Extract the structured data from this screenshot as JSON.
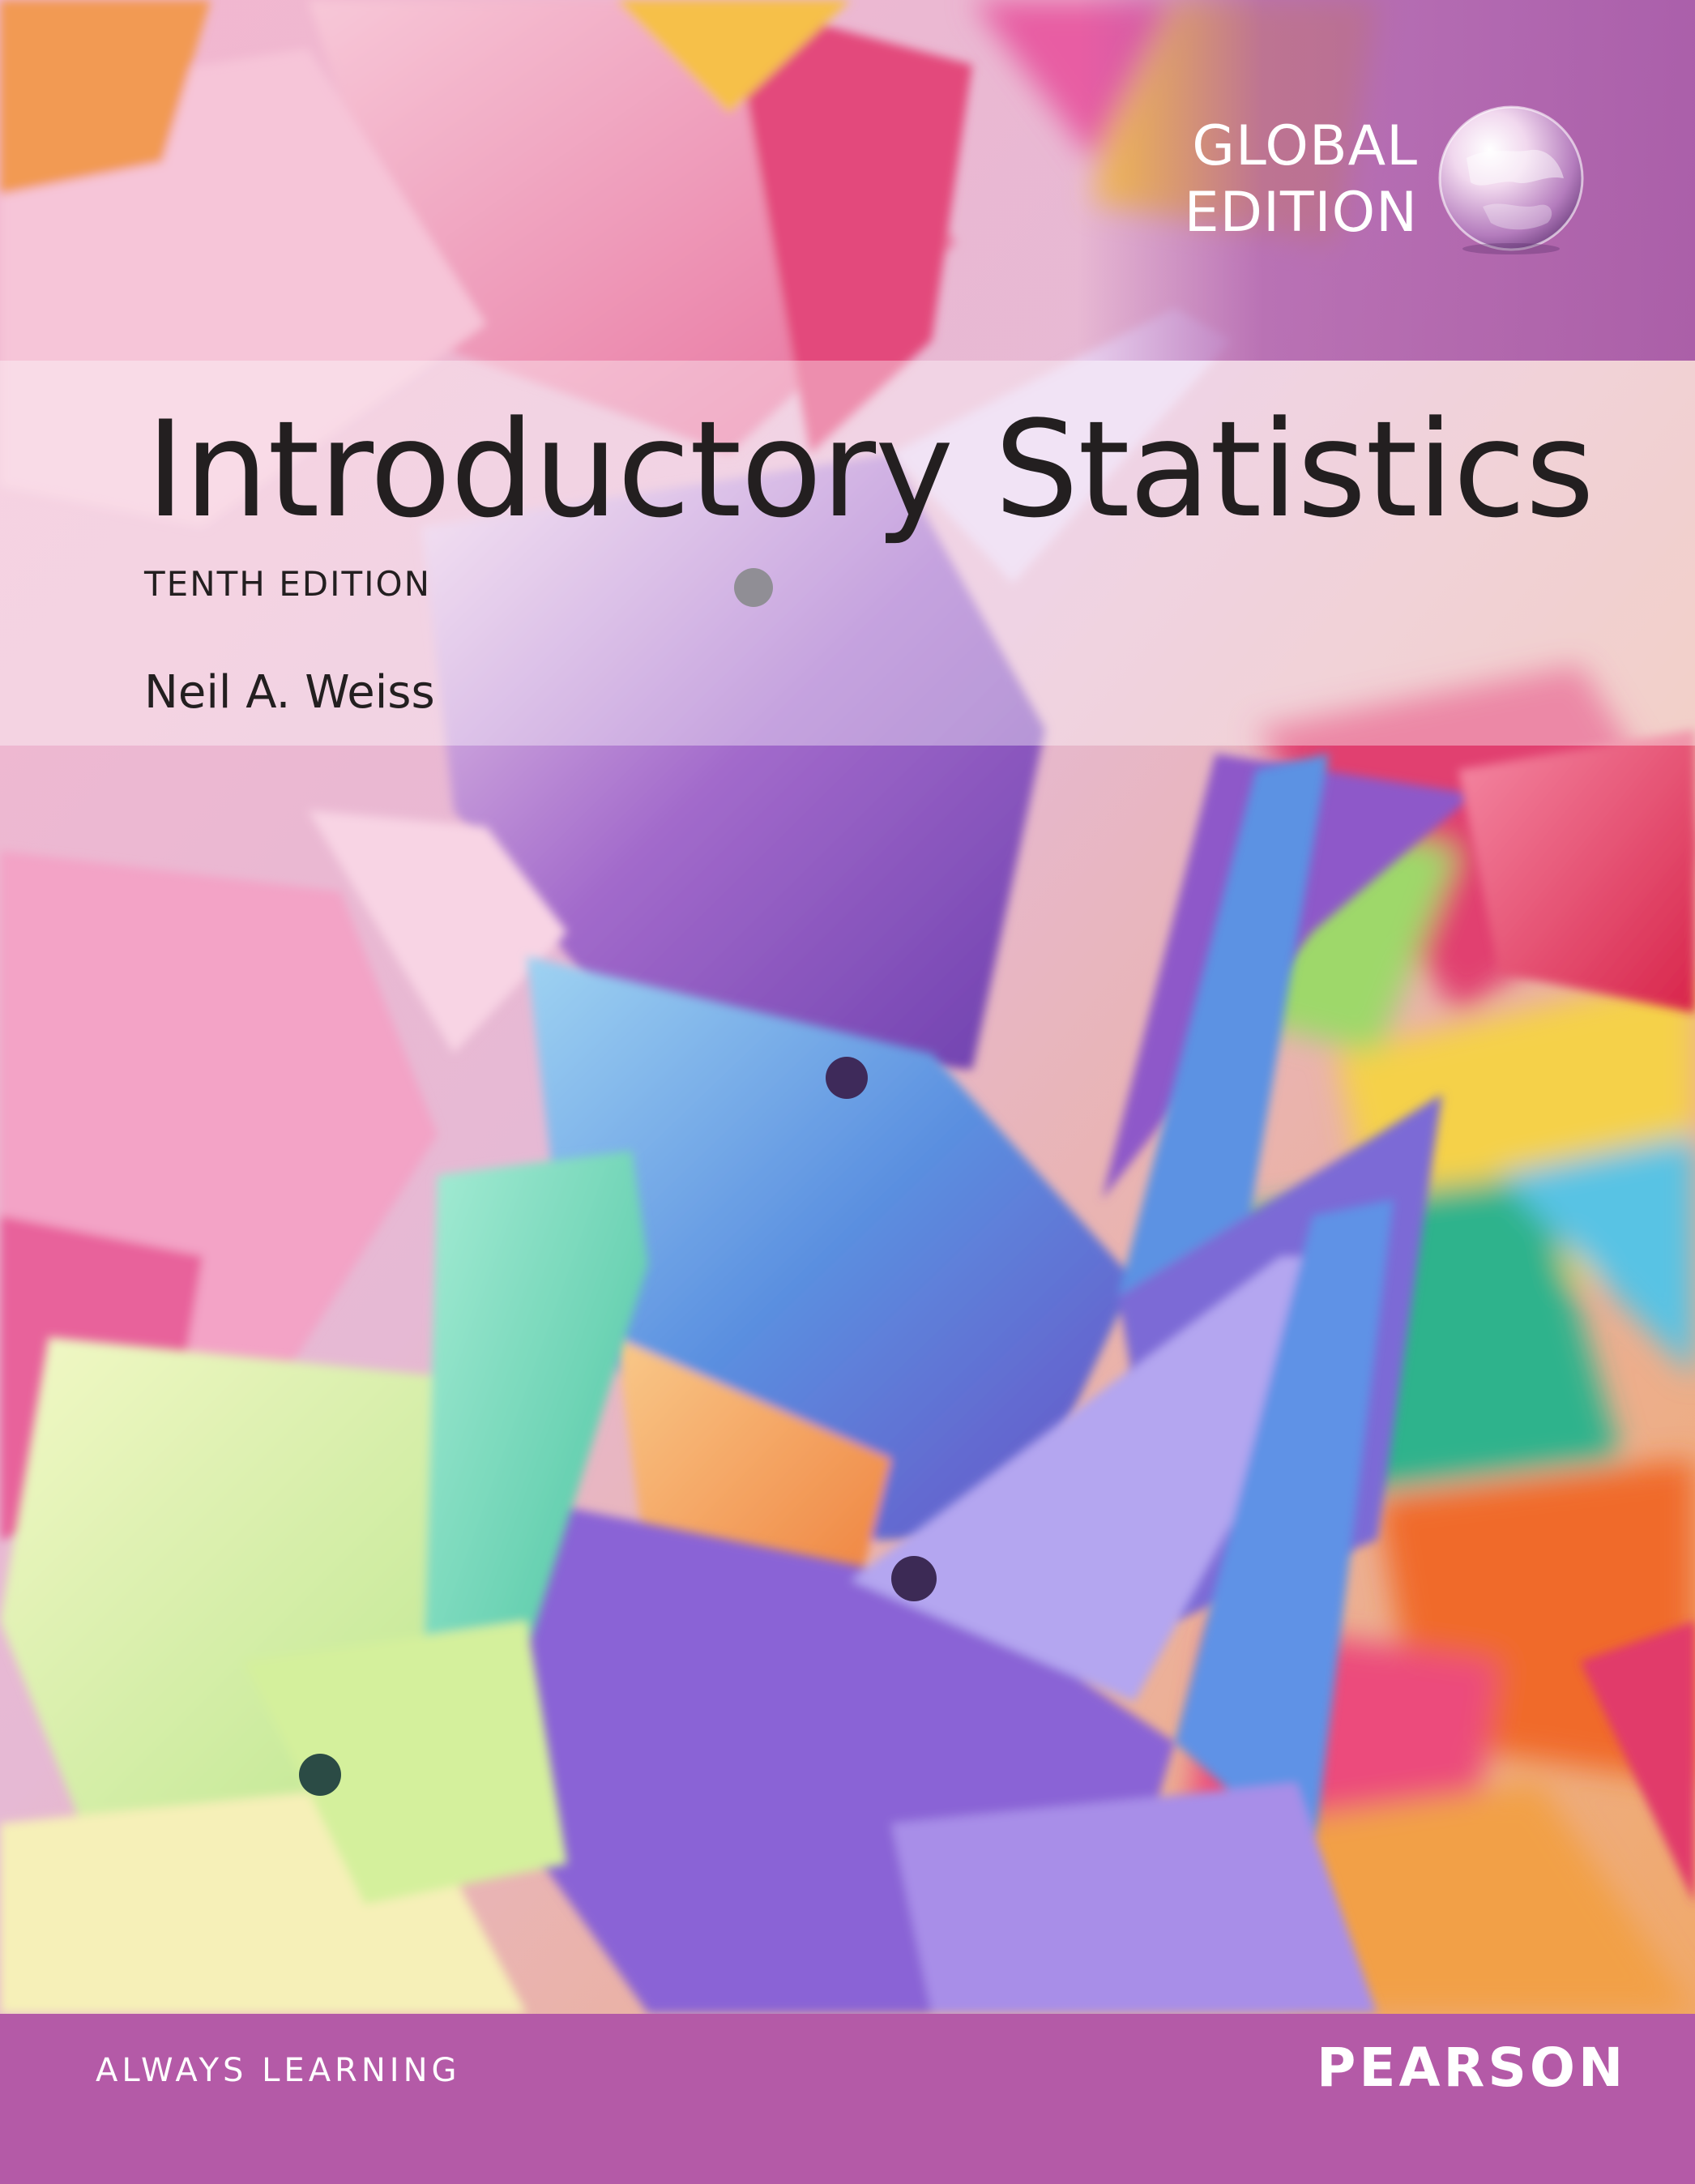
{
  "cover": {
    "badge": {
      "line1": "GLOBAL",
      "line2": "EDITION"
    },
    "title": "Introductory Statistics",
    "edition": "TENTH EDITION",
    "author": "Neil A. Weiss",
    "footer": {
      "slogan": "ALWAYS LEARNING",
      "publisher": "PEARSON"
    }
  },
  "colors": {
    "footer_band": "#b45aa7",
    "title_text": "#231f20",
    "badge_tint": "#a050a5"
  },
  "icons": {
    "badge": "globe-icon"
  }
}
